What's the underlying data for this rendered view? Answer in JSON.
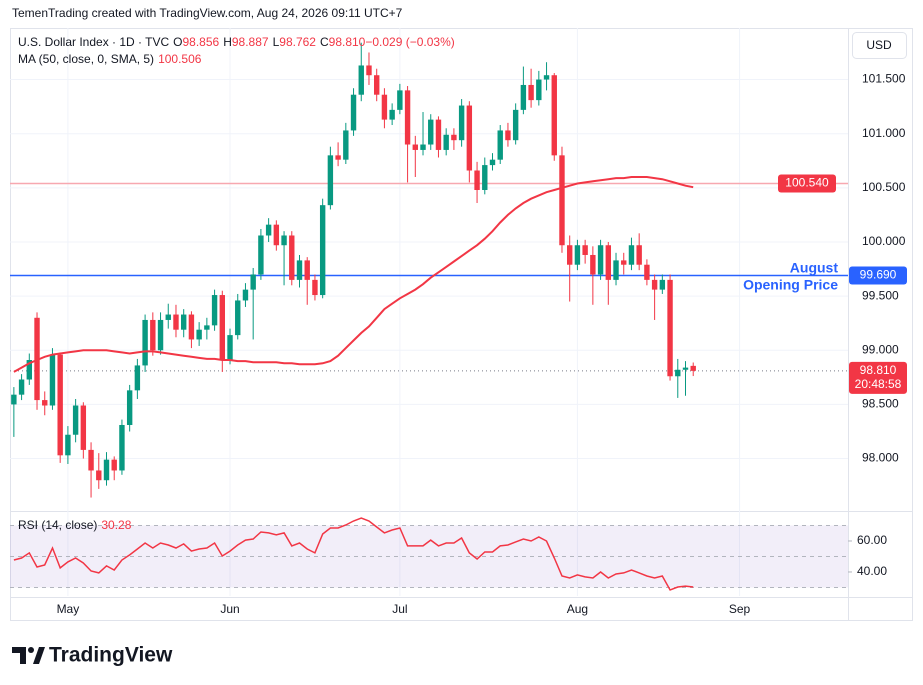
{
  "header": "TemenTrading created with TradingView.com, Aug 24, 2026 09:11 UTC+7",
  "footer_logo": "TradingView",
  "chart_data": {
    "type": "candlestick",
    "title": "U.S. Dollar Index · 1D · TVC",
    "ohlc_legend": [
      {
        "key": "O",
        "text": "98.856"
      },
      {
        "key": "H",
        "text": "98.887"
      },
      {
        "key": "L",
        "text": "98.762"
      },
      {
        "key": "C",
        "text": "98.810"
      },
      {
        "key": "",
        "text": "−0.029 (−0.03%)"
      }
    ],
    "currency": "USD",
    "categories": [
      null,
      null,
      null,
      null,
      null,
      null,
      null,
      "May",
      null,
      null,
      null,
      null,
      null,
      null,
      null,
      null,
      null,
      null,
      null,
      null,
      null,
      null,
      null,
      null,
      null,
      null,
      null,
      null,
      "Jun",
      null,
      null,
      null,
      null,
      null,
      null,
      null,
      null,
      null,
      null,
      null,
      null,
      null,
      null,
      null,
      null,
      null,
      null,
      null,
      null,
      null,
      "Jul",
      null,
      null,
      null,
      null,
      null,
      null,
      null,
      null,
      null,
      null,
      null,
      null,
      null,
      null,
      null,
      null,
      null,
      null,
      null,
      null,
      null,
      null,
      "Aug",
      null,
      null,
      null,
      null,
      null,
      null,
      null,
      null,
      null,
      null,
      null,
      null,
      null,
      null,
      null,
      null,
      null,
      null,
      null,
      null,
      "Sep"
    ],
    "open": [
      98.5,
      98.59,
      98.73,
      99.3,
      98.54,
      98.49,
      98.96,
      98.03,
      98.22,
      98.49,
      98.08,
      97.89,
      97.8,
      97.99,
      97.89,
      98.31,
      98.63,
      98.86,
      99.28,
      99.0,
      99.28,
      99.33,
      99.19,
      99.33,
      99.1,
      99.19,
      99.23,
      99.51,
      98.91,
      99.14,
      99.46,
      99.56,
      99.7,
      100.06,
      100.16,
      99.97,
      100.06,
      99.65,
      99.83,
      99.65,
      99.51,
      100.34,
      100.8,
      100.76,
      101.03,
      101.36,
      101.63,
      101.54,
      101.36,
      101.13,
      101.22,
      101.4,
      100.9,
      100.85,
      100.9,
      101.13,
      100.85,
      100.99,
      100.94,
      101.26,
      100.66,
      100.48,
      100.71,
      100.76,
      101.03,
      100.94,
      101.22,
      101.45,
      101.31,
      101.5,
      101.54,
      100.8,
      99.97,
      99.79,
      99.97,
      99.88,
      99.7,
      99.97,
      99.65,
      99.83,
      99.79,
      99.97,
      99.79,
      99.65,
      99.56,
      99.65,
      98.76,
      98.82,
      98.856,
      null,
      null,
      null,
      null,
      null,
      null
    ],
    "high": [
      98.66,
      98.78,
      98.97,
      99.35,
      98.62,
      99.02,
      98.98,
      98.3,
      98.55,
      98.52,
      98.15,
      98.05,
      98.06,
      98.02,
      98.36,
      98.68,
      98.92,
      99.33,
      99.35,
      99.35,
      99.43,
      99.42,
      99.38,
      99.36,
      99.26,
      99.3,
      99.56,
      99.55,
      99.2,
      99.52,
      99.62,
      99.76,
      100.12,
      100.22,
      100.2,
      100.1,
      100.1,
      99.88,
      99.86,
      99.7,
      100.4,
      100.88,
      100.92,
      101.1,
      101.42,
      101.84,
      101.75,
      101.6,
      101.42,
      101.28,
      101.46,
      101.44,
      100.98,
      101.2,
      101.18,
      101.16,
      101.05,
      101.05,
      101.32,
      101.3,
      100.74,
      100.78,
      100.82,
      101.08,
      101.1,
      101.28,
      101.62,
      101.6,
      101.58,
      101.66,
      101.56,
      100.88,
      100.06,
      100.02,
      100.02,
      99.96,
      100.02,
      100.0,
      99.9,
      99.9,
      100.04,
      100.08,
      99.84,
      99.7,
      99.7,
      99.7,
      98.92,
      98.9,
      98.887,
      null,
      null,
      null,
      null,
      null,
      null
    ],
    "low": [
      98.2,
      98.54,
      98.68,
      98.45,
      98.4,
      98.45,
      97.96,
      97.95,
      98.15,
      98.0,
      97.64,
      97.72,
      97.75,
      97.8,
      97.85,
      98.25,
      98.55,
      98.8,
      98.95,
      98.96,
      99.2,
      99.12,
      99.12,
      99.02,
      99.04,
      99.1,
      99.18,
      98.8,
      98.87,
      99.1,
      99.4,
      99.1,
      99.65,
      100.0,
      99.92,
      99.6,
      99.6,
      99.58,
      99.42,
      99.46,
      99.48,
      100.3,
      100.7,
      100.72,
      100.98,
      101.3,
      101.45,
      101.3,
      101.05,
      101.08,
      101.18,
      100.55,
      100.6,
      100.8,
      100.85,
      100.78,
      100.8,
      100.85,
      100.88,
      100.55,
      100.36,
      100.44,
      100.66,
      100.72,
      100.88,
      100.9,
      101.18,
      101.24,
      101.26,
      101.4,
      100.75,
      99.9,
      99.45,
      99.74,
      99.8,
      99.42,
      99.65,
      99.42,
      99.6,
      99.7,
      99.74,
      99.74,
      99.6,
      99.28,
      99.52,
      98.72,
      98.56,
      98.58,
      98.762,
      null,
      null,
      null,
      null,
      null,
      null
    ],
    "close": [
      98.59,
      98.73,
      98.91,
      98.54,
      98.49,
      98.96,
      98.03,
      98.22,
      98.49,
      98.08,
      97.89,
      97.8,
      97.99,
      97.89,
      98.31,
      98.63,
      98.86,
      99.28,
      99.0,
      99.28,
      99.33,
      99.19,
      99.33,
      99.1,
      99.19,
      99.23,
      99.51,
      98.91,
      99.14,
      99.46,
      99.56,
      99.7,
      100.06,
      100.16,
      99.97,
      100.06,
      99.65,
      99.83,
      99.65,
      99.51,
      100.34,
      100.8,
      100.76,
      101.03,
      101.36,
      101.63,
      101.54,
      101.36,
      101.13,
      101.22,
      101.4,
      100.9,
      100.85,
      100.9,
      101.13,
      100.85,
      100.99,
      100.94,
      101.26,
      100.66,
      100.48,
      100.71,
      100.76,
      101.03,
      100.94,
      101.22,
      101.45,
      101.31,
      101.5,
      101.54,
      100.8,
      99.97,
      99.79,
      99.97,
      99.88,
      99.7,
      99.97,
      99.65,
      99.83,
      99.79,
      99.97,
      99.79,
      99.65,
      99.56,
      99.65,
      98.76,
      98.82,
      98.84,
      98.81,
      null,
      null,
      null,
      null,
      null,
      null
    ],
    "up_color": "#089981",
    "down_color": "#f23645",
    "ylim": [
      97.525,
      101.976
    ],
    "yticks": [
      {
        "value": 98,
        "label": "98.000"
      },
      {
        "value": 98.5,
        "label": "98.500"
      },
      {
        "value": 99,
        "label": "99.000"
      },
      {
        "value": 99.5,
        "label": "99.500"
      },
      {
        "value": 100,
        "label": "100.000"
      },
      {
        "value": 100.5,
        "label": "100.500"
      },
      {
        "value": 101,
        "label": "101.000"
      },
      {
        "value": 101.5,
        "label": "101.500"
      }
    ],
    "grid": true,
    "last_price": {
      "value": 98.81,
      "label": "98.810",
      "countdown": "20:48:58"
    },
    "lines": [
      {
        "value": 100.54,
        "label": "100.540",
        "color": "#f7a8b0",
        "tag_color": "#f23645"
      },
      {
        "value": 99.69,
        "label": "99.690",
        "color": "#2962ff",
        "tag_color": "#2962ff",
        "annotation": [
          "August",
          "Opening Price"
        ]
      }
    ],
    "ma": {
      "name": "MA (50, close, 0, SMA, 5)",
      "color": "#f23645",
      "values": [
        98.8,
        98.84,
        98.88,
        98.91,
        98.94,
        98.96,
        98.97,
        98.98,
        98.99,
        99.0,
        99.0,
        99.0,
        99.0,
        98.99,
        98.98,
        98.97,
        98.98,
        98.99,
        98.99,
        98.98,
        98.97,
        98.96,
        98.95,
        98.94,
        98.93,
        98.92,
        98.92,
        98.91,
        98.91,
        98.9,
        98.9,
        98.89,
        98.89,
        98.89,
        98.89,
        98.88,
        98.88,
        98.87,
        98.87,
        98.87,
        98.88,
        98.9,
        98.95,
        99.02,
        99.09,
        99.16,
        99.22,
        99.3,
        99.38,
        99.43,
        99.48,
        99.52,
        99.56,
        99.61,
        99.67,
        99.72,
        99.77,
        99.82,
        99.87,
        99.92,
        99.97,
        100.03,
        100.1,
        100.18,
        100.25,
        100.31,
        100.36,
        100.4,
        100.43,
        100.46,
        100.48,
        100.5,
        100.52,
        100.54,
        100.55,
        100.56,
        100.57,
        100.58,
        100.59,
        100.59,
        100.6,
        100.6,
        100.6,
        100.59,
        100.58,
        100.56,
        100.54,
        100.52,
        100.506,
        null,
        null,
        null,
        null,
        null,
        null
      ]
    },
    "rsi": {
      "name": "RSI (14, close)",
      "color": "#f23645",
      "values": [
        47.7,
        49.0,
        52.3,
        43.2,
        44.5,
        55.5,
        42.6,
        46.5,
        49.0,
        45.8,
        40.6,
        39.4,
        43.9,
        41.3,
        47.7,
        51.0,
        54.8,
        58.7,
        55.5,
        58.7,
        57.4,
        55.5,
        58.1,
        53.5,
        54.8,
        55.5,
        58.7,
        50.3,
        53.5,
        57.4,
        60.6,
        61.3,
        65.8,
        65.2,
        63.9,
        65.2,
        56.8,
        58.7,
        54.8,
        52.3,
        64.5,
        68.4,
        68.4,
        70.3,
        72.9,
        74.8,
        72.9,
        69.0,
        65.2,
        67.1,
        68.4,
        56.8,
        56.8,
        56.8,
        60.6,
        56.8,
        58.7,
        58.7,
        61.9,
        52.3,
        48.4,
        52.9,
        52.9,
        56.8,
        57.4,
        59.4,
        61.3,
        60.0,
        62.6,
        60.0,
        49.0,
        37.4,
        36.1,
        38.1,
        36.8,
        36.1,
        40.0,
        36.1,
        38.7,
        39.4,
        41.3,
        39.4,
        37.4,
        36.1,
        37.4,
        28.4,
        30.3,
        30.9,
        30.28,
        null,
        null,
        null,
        null,
        null,
        null
      ],
      "ylim": [
        24.5,
        78.7
      ],
      "yticks": [
        {
          "value": 40,
          "label": "40.00"
        },
        {
          "value": 60,
          "label": "60.00"
        }
      ],
      "levels": [
        30,
        50,
        70
      ],
      "band_color": "#7e57c2"
    }
  }
}
